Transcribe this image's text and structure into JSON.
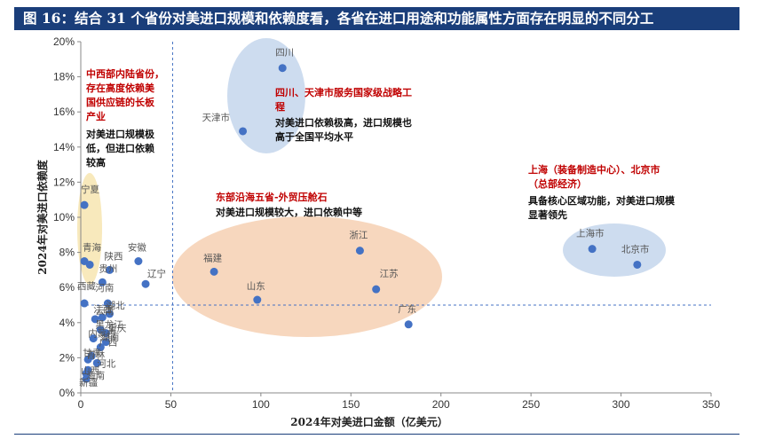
{
  "header": {
    "title": "图 16：结合 31 个省份对美进口规模和依赖度看，各省在进口用途和功能属性方面存在明显的不同分工"
  },
  "chart_data": {
    "type": "scatter",
    "title": "图 16：结合 31 个省份对美进口规模和依赖度看，各省在进口用途和功能属性方面存在明显的不同分工",
    "xlabel": "2024年对美进口金额（亿美元）",
    "ylabel": "2024年对美进口依赖度",
    "xlim": [
      0,
      350
    ],
    "ylim": [
      0,
      20
    ],
    "x_ticks": [
      "0",
      "50",
      "100",
      "150",
      "200",
      "250",
      "300",
      "350"
    ],
    "y_ticks": [
      "0%",
      "2%",
      "4%",
      "6%",
      "8%",
      "10%",
      "12%",
      "14%",
      "16%",
      "18%",
      "20%"
    ],
    "reference_lines": {
      "x": 51,
      "y": 5
    },
    "point_color": "#4472c4",
    "points": [
      {
        "x": 112,
        "y": 18.5,
        "label": "四川"
      },
      {
        "x": 90,
        "y": 14.9,
        "label": "天津市"
      },
      {
        "x": 284,
        "y": 8.2,
        "label": "上海市"
      },
      {
        "x": 309,
        "y": 7.3,
        "label": "北京市"
      },
      {
        "x": 155,
        "y": 8.1,
        "label": "浙江"
      },
      {
        "x": 164,
        "y": 5.9,
        "label": "江苏"
      },
      {
        "x": 182,
        "y": 3.9,
        "label": "广东"
      },
      {
        "x": 74,
        "y": 6.9,
        "label": "福建"
      },
      {
        "x": 98,
        "y": 5.3,
        "label": "山东"
      },
      {
        "x": 32,
        "y": 7.5,
        "label": "安徽"
      },
      {
        "x": 36,
        "y": 6.2,
        "label": "辽宁"
      },
      {
        "x": 2,
        "y": 10.7,
        "label": "宁夏"
      },
      {
        "x": 2,
        "y": 7.5,
        "label": "青海"
      },
      {
        "x": 5,
        "y": 7.3,
        "label": ""
      },
      {
        "x": 16,
        "y": 7.0,
        "label": "陕西"
      },
      {
        "x": 12,
        "y": 6.3,
        "label": "贵州"
      },
      {
        "x": 2,
        "y": 5.1,
        "label": "西藏"
      },
      {
        "x": 15,
        "y": 5.1,
        "label": "河南"
      },
      {
        "x": 16,
        "y": 4.5,
        "label": "湖北"
      },
      {
        "x": 12,
        "y": 4.3,
        "label": "云南"
      },
      {
        "x": 8,
        "y": 4.2,
        "label": "江西"
      },
      {
        "x": 11,
        "y": 3.6,
        "label": "黑龙江"
      },
      {
        "x": 14,
        "y": 3.4,
        "label": "重庆"
      },
      {
        "x": 7,
        "y": 3.1,
        "label": "内蒙古"
      },
      {
        "x": 14,
        "y": 2.9,
        "label": "湖南"
      },
      {
        "x": 11,
        "y": 2.6,
        "label": "广西"
      },
      {
        "x": 6,
        "y": 2.1,
        "label": "吉林"
      },
      {
        "x": 4,
        "y": 1.9,
        "label": "甘肃"
      },
      {
        "x": 9,
        "y": 1.7,
        "label": "河北"
      },
      {
        "x": 4,
        "y": 1.3,
        "label": "山西"
      },
      {
        "x": 3,
        "y": 0.8,
        "label": "新疆"
      },
      {
        "x": 3,
        "y": 1.1,
        "label": "海南"
      }
    ],
    "regions": [
      {
        "name": "west-central",
        "fill": "#f5e2a6"
      },
      {
        "name": "sichuan-tianjin",
        "fill": "#bcd0ea"
      },
      {
        "name": "eastern-coastal",
        "fill": "#f4c9a8"
      },
      {
        "name": "shanghai-beijing",
        "fill": "#bcd0ea"
      }
    ],
    "annotations": [
      {
        "color": "#c00000",
        "lines": [
          "中西部内陆省份，",
          "存在高度依赖美",
          "国供应链的长板",
          "产业"
        ]
      },
      {
        "color": "#111111",
        "lines": [
          "对美进口规模极",
          "低，但进口依赖",
          "较高"
        ]
      },
      {
        "color": "#c00000",
        "lines": [
          "四川、天津市服务国家级战略工",
          "程"
        ]
      },
      {
        "color": "#111111",
        "lines": [
          "对美进口依赖极高，进口规模也",
          "高于全国平均水平"
        ]
      },
      {
        "color": "#c00000",
        "lines": [
          "东部沿海五省-外贸压舱石"
        ]
      },
      {
        "color": "#111111",
        "lines": [
          "对美进口规模较大，进口依赖中等"
        ]
      },
      {
        "color": "#c00000",
        "lines": [
          "上海（装备制造中心）、北京市",
          "（总部经济）"
        ]
      },
      {
        "color": "#111111",
        "lines": [
          "具备核心区域功能，对美进口规模",
          "显著领先"
        ]
      }
    ]
  }
}
